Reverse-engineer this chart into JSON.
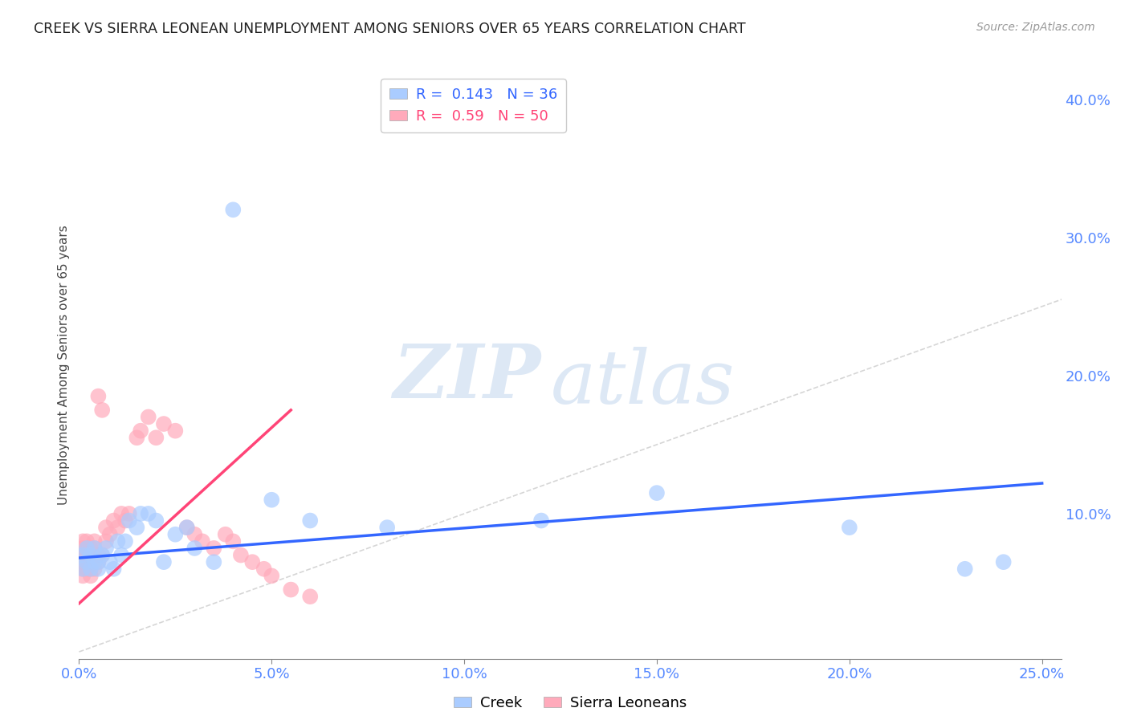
{
  "title": "CREEK VS SIERRA LEONEAN UNEMPLOYMENT AMONG SENIORS OVER 65 YEARS CORRELATION CHART",
  "source": "Source: ZipAtlas.com",
  "ylabel": "Unemployment Among Seniors over 65 years",
  "xlim": [
    0.0,
    0.255
  ],
  "ylim": [
    -0.005,
    0.42
  ],
  "background_color": "#ffffff",
  "grid_color": "#cccccc",
  "watermark_text": "ZIP",
  "watermark_text2": "atlas",
  "creek_color": "#aaccff",
  "sierra_color": "#ffaabb",
  "creek_line_color": "#3366ff",
  "sierra_line_color": "#ff4477",
  "diagonal_color": "#cccccc",
  "creek_R": 0.143,
  "creek_N": 36,
  "sierra_R": 0.59,
  "sierra_N": 50,
  "creek_x": [
    0.001,
    0.001,
    0.002,
    0.002,
    0.003,
    0.003,
    0.004,
    0.004,
    0.005,
    0.005,
    0.006,
    0.007,
    0.008,
    0.009,
    0.01,
    0.011,
    0.012,
    0.013,
    0.015,
    0.016,
    0.018,
    0.02,
    0.022,
    0.025,
    0.028,
    0.03,
    0.035,
    0.04,
    0.05,
    0.06,
    0.08,
    0.12,
    0.15,
    0.2,
    0.23,
    0.24
  ],
  "creek_y": [
    0.06,
    0.07,
    0.065,
    0.075,
    0.06,
    0.07,
    0.065,
    0.075,
    0.06,
    0.065,
    0.07,
    0.075,
    0.065,
    0.06,
    0.08,
    0.07,
    0.08,
    0.095,
    0.09,
    0.1,
    0.1,
    0.095,
    0.065,
    0.085,
    0.09,
    0.075,
    0.065,
    0.32,
    0.11,
    0.095,
    0.09,
    0.095,
    0.115,
    0.09,
    0.06,
    0.065
  ],
  "sierra_x": [
    0.001,
    0.001,
    0.001,
    0.001,
    0.001,
    0.001,
    0.002,
    0.002,
    0.002,
    0.002,
    0.002,
    0.003,
    0.003,
    0.003,
    0.003,
    0.004,
    0.004,
    0.004,
    0.004,
    0.005,
    0.005,
    0.005,
    0.006,
    0.006,
    0.007,
    0.007,
    0.008,
    0.009,
    0.01,
    0.011,
    0.012,
    0.013,
    0.015,
    0.016,
    0.018,
    0.02,
    0.022,
    0.025,
    0.028,
    0.03,
    0.032,
    0.035,
    0.038,
    0.04,
    0.042,
    0.045,
    0.048,
    0.05,
    0.055,
    0.06
  ],
  "sierra_y": [
    0.055,
    0.065,
    0.06,
    0.07,
    0.075,
    0.08,
    0.06,
    0.065,
    0.07,
    0.075,
    0.08,
    0.055,
    0.06,
    0.07,
    0.075,
    0.06,
    0.065,
    0.075,
    0.08,
    0.065,
    0.07,
    0.185,
    0.07,
    0.175,
    0.08,
    0.09,
    0.085,
    0.095,
    0.09,
    0.1,
    0.095,
    0.1,
    0.155,
    0.16,
    0.17,
    0.155,
    0.165,
    0.16,
    0.09,
    0.085,
    0.08,
    0.075,
    0.085,
    0.08,
    0.07,
    0.065,
    0.06,
    0.055,
    0.045,
    0.04
  ],
  "xticks": [
    0.0,
    0.05,
    0.1,
    0.15,
    0.2,
    0.25
  ],
  "xtick_labels": [
    "0.0%",
    "5.0%",
    "10.0%",
    "15.0%",
    "20.0%",
    "25.0%"
  ],
  "yticks_right": [
    0.1,
    0.2,
    0.3,
    0.4
  ],
  "ytick_labels_right": [
    "10.0%",
    "20.0%",
    "30.0%",
    "40.0%"
  ],
  "creek_line_x": [
    0.0,
    0.25
  ],
  "creek_line_y": [
    0.068,
    0.122
  ],
  "sierra_line_x": [
    0.0,
    0.055
  ],
  "sierra_line_y": [
    0.035,
    0.175
  ]
}
